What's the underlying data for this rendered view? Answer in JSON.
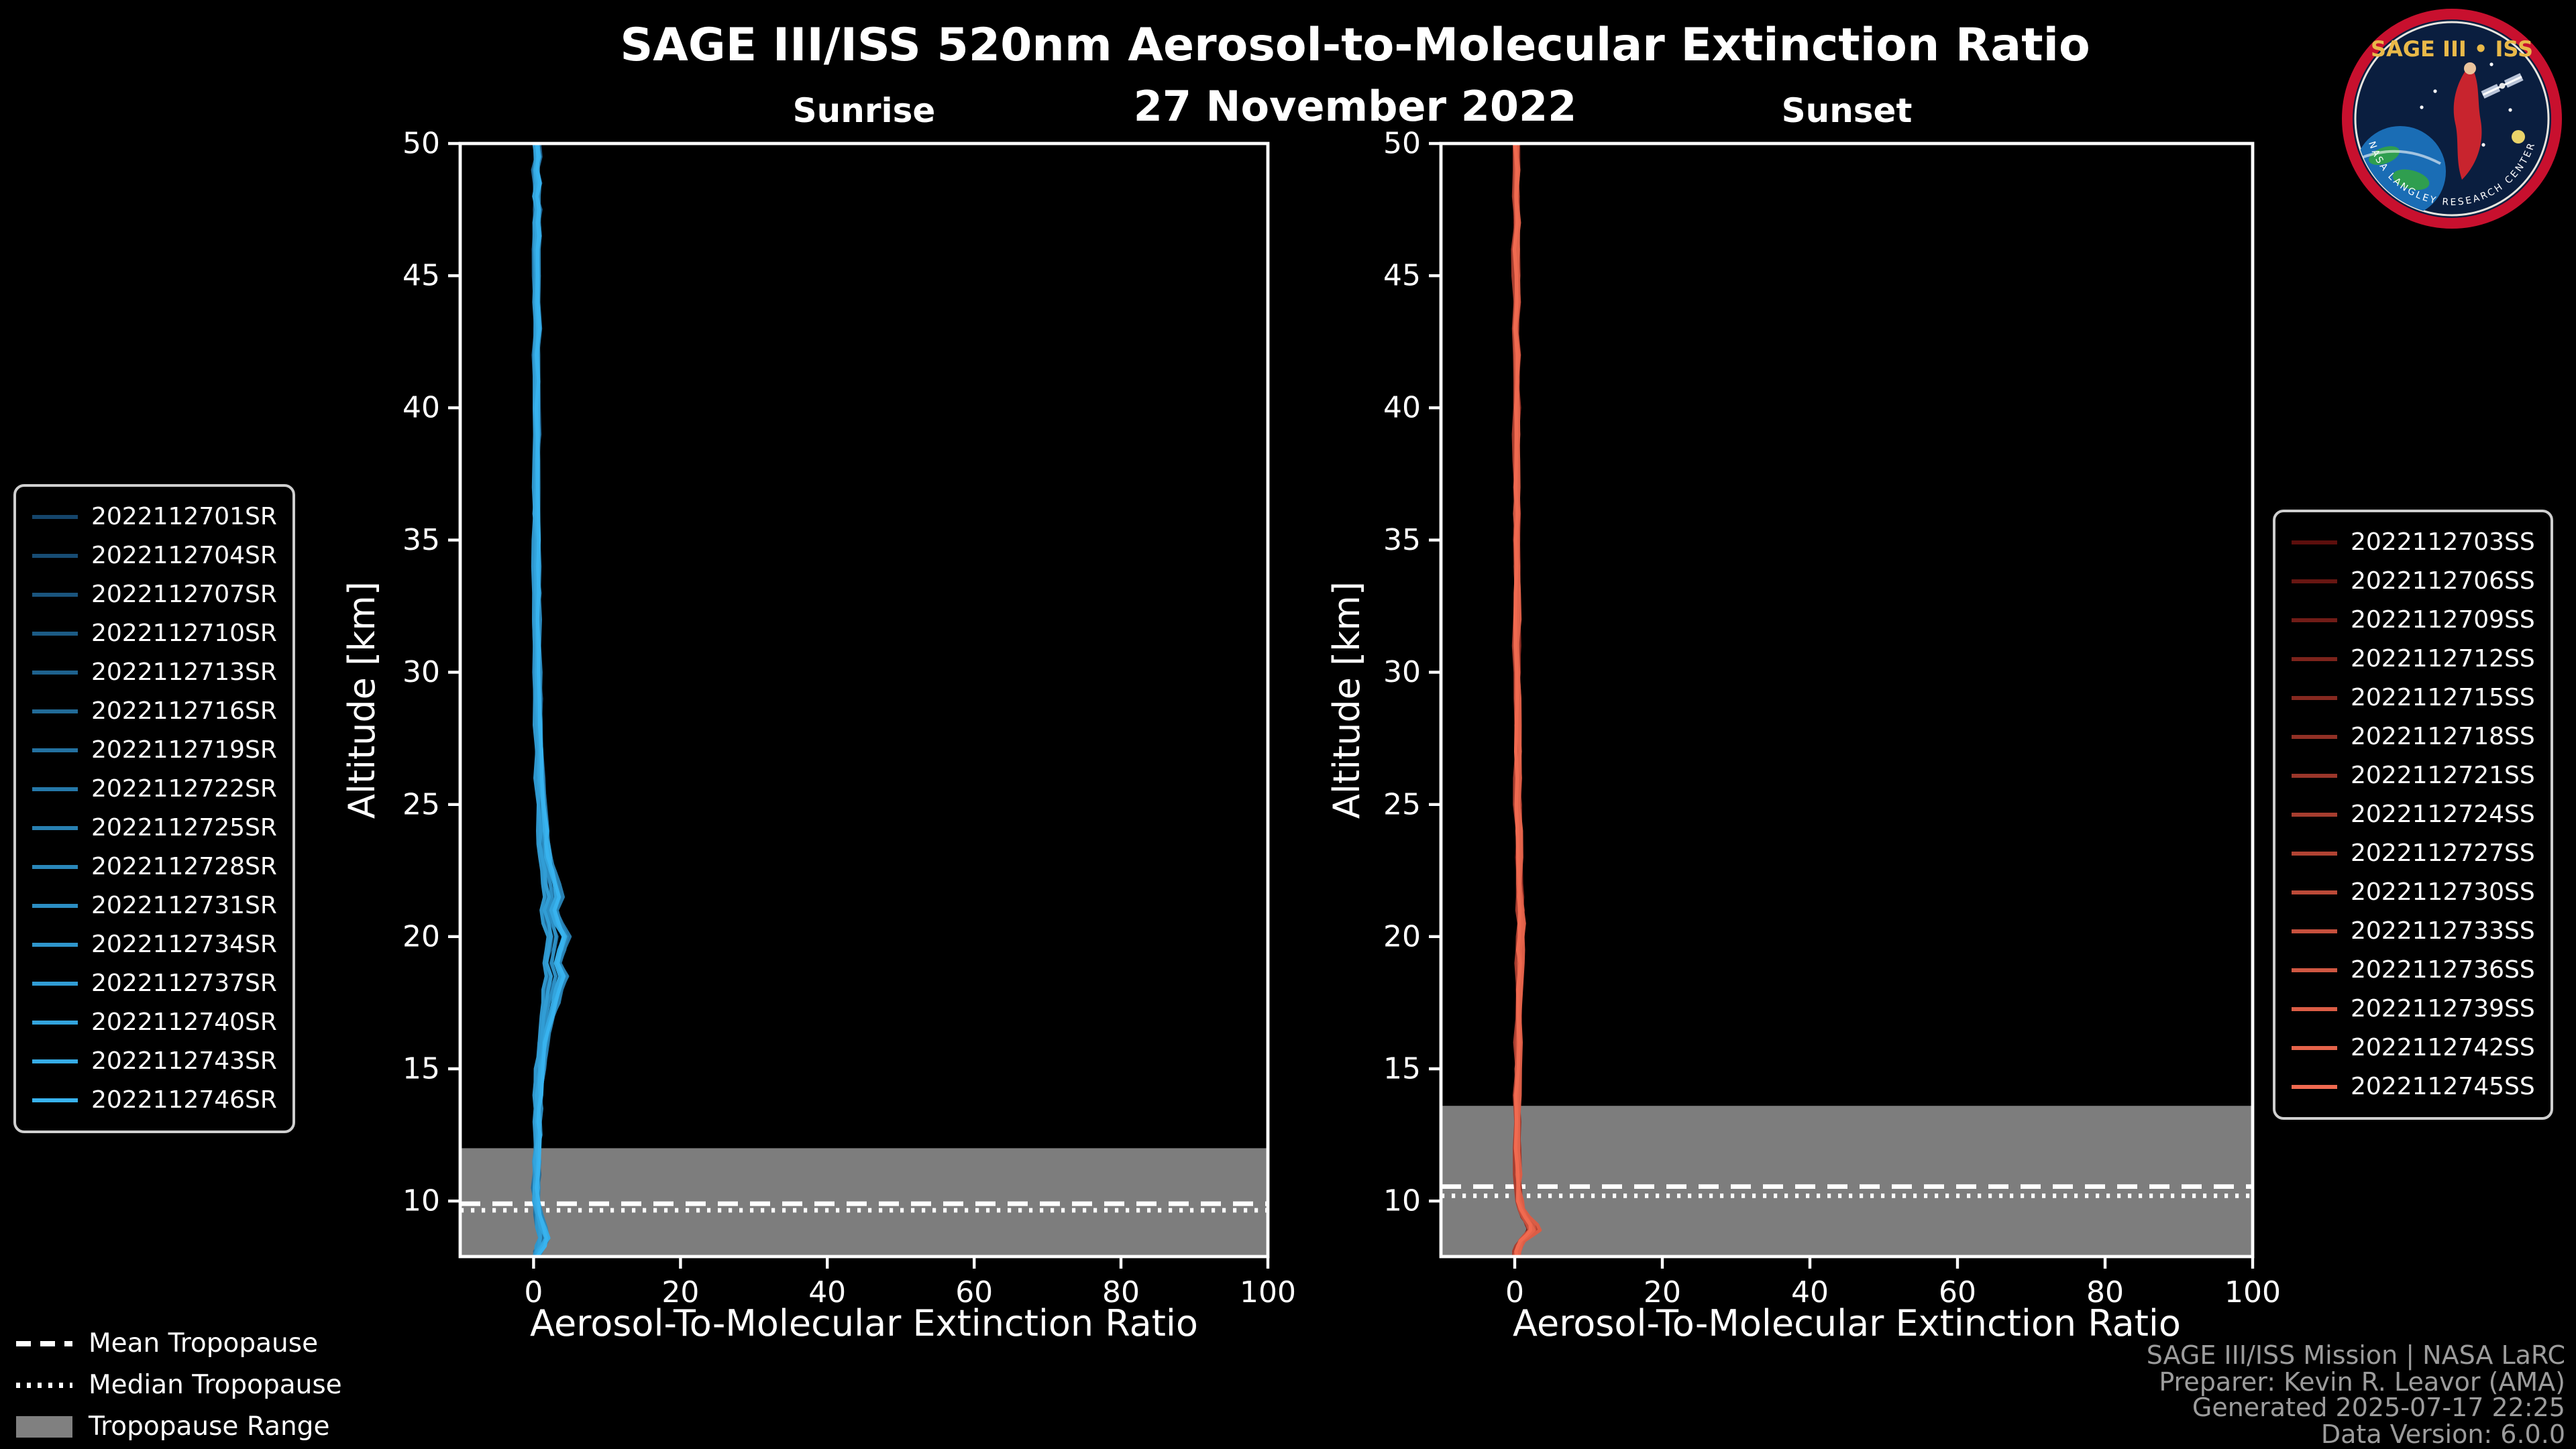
{
  "header": {
    "title": "SAGE III/ISS 520nm Aerosol-to-Molecular Extinction Ratio",
    "date": "27 November 2022"
  },
  "logo": {
    "title": "SAGE III • ISS",
    "ring_text": "NASA LANGLEY RESEARCH CENTER"
  },
  "credits": {
    "line1": "SAGE III/ISS Mission | NASA LaRC",
    "line2": "Preparer: Kevin R. Leavor (AMA)",
    "line3": "Generated 2025-07-17 22:25",
    "line4": "Data Version: 6.0.0"
  },
  "chart_data": {
    "type": "line",
    "title": "SAGE III/ISS 520nm Aerosol-to-Molecular Extinction Ratio",
    "date": "27 November 2022",
    "xlabel": "Aerosol-To-Molecular Extinction Ratio",
    "ylabel": "Altitude [km]",
    "xlim": [
      -10,
      100
    ],
    "ylim": [
      7.9,
      50
    ],
    "xticks": [
      0,
      20,
      40,
      60,
      80,
      100
    ],
    "yticks": [
      10,
      15,
      20,
      25,
      30,
      35,
      40,
      45,
      50
    ],
    "grid": false,
    "band_color": "#7d7d7d",
    "tropopause_legend": [
      {
        "label": "Mean Tropopause",
        "style": "dashed"
      },
      {
        "label": "Median Tropopause",
        "style": "dotted"
      },
      {
        "label": "Tropopause Range",
        "style": "band"
      }
    ],
    "panels": [
      {
        "title": "Sunrise",
        "series": [
          "2022112701SR",
          "2022112704SR",
          "2022112707SR",
          "2022112710SR",
          "2022112713SR",
          "2022112716SR",
          "2022112719SR",
          "2022112722SR",
          "2022112725SR",
          "2022112728SR",
          "2022112731SR",
          "2022112734SR",
          "2022112737SR",
          "2022112740SR",
          "2022112743SR",
          "2022112746SR"
        ],
        "color_ramp": [
          "#15456b",
          "#38b3ef"
        ],
        "spread": [
          0.55,
          1.55
        ],
        "tropopause": {
          "mean_km": 9.9,
          "median_km": 9.65,
          "range_km": [
            7.9,
            12.0
          ]
        },
        "base_profile": [
          [
            50,
            0.35
          ],
          [
            49.5,
            0.5
          ],
          [
            49,
            0.3
          ],
          [
            48.5,
            0.45
          ],
          [
            48,
            0.3
          ],
          [
            47.5,
            0.5
          ],
          [
            47,
            0.35
          ],
          [
            46.5,
            0.5
          ],
          [
            46,
            0.3
          ],
          [
            45,
            0.4
          ],
          [
            44,
            0.3
          ],
          [
            43,
            0.45
          ],
          [
            42,
            0.3
          ],
          [
            41,
            0.4
          ],
          [
            40,
            0.3
          ],
          [
            39,
            0.4
          ],
          [
            38,
            0.3
          ],
          [
            37,
            0.4
          ],
          [
            36,
            0.3
          ],
          [
            35,
            0.4
          ],
          [
            34,
            0.35
          ],
          [
            33,
            0.45
          ],
          [
            32,
            0.4
          ],
          [
            31,
            0.45
          ],
          [
            30,
            0.5
          ],
          [
            29,
            0.55
          ],
          [
            28,
            0.6
          ],
          [
            27,
            0.7
          ],
          [
            26,
            0.8
          ],
          [
            25,
            1.0
          ],
          [
            24,
            1.2
          ],
          [
            23.5,
            1.35
          ],
          [
            23,
            1.55
          ],
          [
            22.5,
            1.85
          ],
          [
            22,
            2.25
          ],
          [
            21.5,
            2.6
          ],
          [
            21,
            2.05
          ],
          [
            20.5,
            2.55
          ],
          [
            20,
            3.2
          ],
          [
            19.5,
            2.85
          ],
          [
            19,
            2.35
          ],
          [
            18.5,
            3.0
          ],
          [
            18,
            2.6
          ],
          [
            17.5,
            2.2
          ],
          [
            17,
            1.8
          ],
          [
            16.5,
            1.5
          ],
          [
            16,
            1.2
          ],
          [
            15.5,
            1.0
          ],
          [
            15,
            0.85
          ],
          [
            14.5,
            0.7
          ],
          [
            14,
            0.6
          ],
          [
            13.5,
            0.55
          ],
          [
            13,
            0.5
          ],
          [
            12.5,
            0.45
          ],
          [
            12,
            0.4
          ],
          [
            11.5,
            0.38
          ],
          [
            11,
            0.35
          ],
          [
            10.5,
            0.3
          ],
          [
            10,
            0.35
          ],
          [
            9.5,
            0.6
          ],
          [
            9,
            1.0
          ],
          [
            8.6,
            1.4
          ],
          [
            8.3,
            1.0
          ],
          [
            8.1,
            0.6
          ],
          [
            7.9,
            0.4
          ]
        ]
      },
      {
        "title": "Sunset",
        "series": [
          "2022112703SS",
          "2022112706SS",
          "2022112709SS",
          "2022112712SS",
          "2022112715SS",
          "2022112718SS",
          "2022112721SS",
          "2022112724SS",
          "2022112727SS",
          "2022112730SS",
          "2022112733SS",
          "2022112736SS",
          "2022112739SS",
          "2022112742SS",
          "2022112745SS"
        ],
        "color_ramp": [
          "#5c0f0d",
          "#f06a50"
        ],
        "spread": [
          0.6,
          1.2
        ],
        "tropopause": {
          "mean_km": 10.55,
          "median_km": 10.2,
          "range_km": [
            7.9,
            13.6
          ]
        },
        "base_profile": [
          [
            50,
            0.15
          ],
          [
            49,
            0.25
          ],
          [
            48,
            0.15
          ],
          [
            47,
            0.25
          ],
          [
            46,
            0.15
          ],
          [
            45,
            0.2
          ],
          [
            44,
            0.25
          ],
          [
            43,
            0.15
          ],
          [
            42,
            0.25
          ],
          [
            41,
            0.2
          ],
          [
            40,
            0.25
          ],
          [
            39,
            0.2
          ],
          [
            38,
            0.25
          ],
          [
            37,
            0.2
          ],
          [
            36,
            0.25
          ],
          [
            35,
            0.25
          ],
          [
            34,
            0.3
          ],
          [
            33,
            0.25
          ],
          [
            32,
            0.3
          ],
          [
            31,
            0.3
          ],
          [
            30,
            0.35
          ],
          [
            29,
            0.3
          ],
          [
            28,
            0.35
          ],
          [
            27,
            0.4
          ],
          [
            26,
            0.4
          ],
          [
            25,
            0.45
          ],
          [
            24,
            0.5
          ],
          [
            23,
            0.55
          ],
          [
            22,
            0.6
          ],
          [
            21.5,
            0.7
          ],
          [
            21,
            0.8
          ],
          [
            20.5,
            0.85
          ],
          [
            20,
            0.8
          ],
          [
            19.5,
            0.75
          ],
          [
            19,
            0.7
          ],
          [
            18,
            0.6
          ],
          [
            17,
            0.55
          ],
          [
            16,
            0.5
          ],
          [
            15,
            0.45
          ],
          [
            14,
            0.42
          ],
          [
            13,
            0.4
          ],
          [
            12,
            0.4
          ],
          [
            11,
            0.4
          ],
          [
            10.5,
            0.45
          ],
          [
            10,
            0.6
          ],
          [
            9.7,
            0.9
          ],
          [
            9.4,
            1.6
          ],
          [
            9.1,
            2.4
          ],
          [
            8.9,
            2.7
          ],
          [
            8.7,
            1.9
          ],
          [
            8.5,
            1.0
          ],
          [
            8.3,
            0.5
          ],
          [
            8.1,
            0.3
          ],
          [
            7.9,
            0.25
          ]
        ]
      }
    ]
  }
}
